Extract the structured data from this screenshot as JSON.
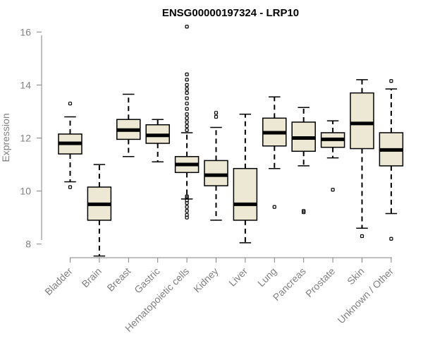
{
  "chart_data": {
    "type": "boxplot",
    "title": "ENSG00000197324 - LRP10",
    "xlabel": "",
    "ylabel": "Expression",
    "ylim": [
      7.7,
      16.3
    ],
    "yticks": [
      8,
      10,
      12,
      14,
      16
    ],
    "box_color": "#EDE8D3",
    "categories": [
      "Bladder",
      "Brain",
      "Breast",
      "Gastric",
      "Hematopoietic cells",
      "Kidney",
      "Liver",
      "Lung",
      "Pancreas",
      "Prostate",
      "Skin",
      "Unknown / Other"
    ],
    "series": [
      {
        "name": "Bladder",
        "whisker_low": 10.35,
        "q1": 11.4,
        "median": 11.8,
        "q3": 12.15,
        "whisker_high": 12.8,
        "outliers": [
          10.15,
          13.3
        ]
      },
      {
        "name": "Brain",
        "whisker_low": 7.55,
        "q1": 8.9,
        "median": 9.5,
        "q3": 10.15,
        "whisker_high": 11.0,
        "outliers": []
      },
      {
        "name": "Breast",
        "whisker_low": 11.3,
        "q1": 11.95,
        "median": 12.3,
        "q3": 12.7,
        "whisker_high": 13.65,
        "outliers": []
      },
      {
        "name": "Gastric",
        "whisker_low": 11.1,
        "q1": 11.8,
        "median": 12.1,
        "q3": 12.5,
        "whisker_high": 12.7,
        "outliers": []
      },
      {
        "name": "Hematopoietic cells",
        "whisker_low": 9.7,
        "q1": 10.7,
        "median": 11.0,
        "q3": 11.3,
        "whisker_high": 12.2,
        "outliers": [
          9.0,
          9.1,
          9.25,
          9.4,
          9.55,
          9.65,
          9.75,
          9.8,
          12.3,
          12.45,
          12.6,
          12.75,
          12.9,
          13.1,
          13.3,
          13.5,
          13.7,
          13.85,
          14.0,
          14.2,
          14.4,
          16.2
        ]
      },
      {
        "name": "Kidney",
        "whisker_low": 8.9,
        "q1": 10.2,
        "median": 10.6,
        "q3": 11.15,
        "whisker_high": 12.4,
        "outliers": [
          12.8,
          12.95
        ]
      },
      {
        "name": "Liver",
        "whisker_low": 8.05,
        "q1": 8.9,
        "median": 9.5,
        "q3": 10.85,
        "whisker_high": 12.9,
        "outliers": []
      },
      {
        "name": "Lung",
        "whisker_low": 10.85,
        "q1": 11.7,
        "median": 12.2,
        "q3": 12.75,
        "whisker_high": 13.55,
        "outliers": [
          9.4
        ]
      },
      {
        "name": "Pancreas",
        "whisker_low": 10.95,
        "q1": 11.5,
        "median": 12.0,
        "q3": 12.6,
        "whisker_high": 13.15,
        "outliers": [
          9.2,
          9.25
        ]
      },
      {
        "name": "Prostate",
        "whisker_low": 11.25,
        "q1": 11.65,
        "median": 11.95,
        "q3": 12.2,
        "whisker_high": 12.65,
        "outliers": [
          10.05
        ]
      },
      {
        "name": "Skin",
        "whisker_low": 8.6,
        "q1": 11.6,
        "median": 12.55,
        "q3": 13.7,
        "whisker_high": 14.2,
        "outliers": [
          8.3
        ]
      },
      {
        "name": "Unknown / Other",
        "whisker_low": 9.15,
        "q1": 10.95,
        "median": 11.55,
        "q3": 12.2,
        "whisker_high": 13.85,
        "outliers": [
          8.2,
          14.15
        ]
      }
    ]
  }
}
